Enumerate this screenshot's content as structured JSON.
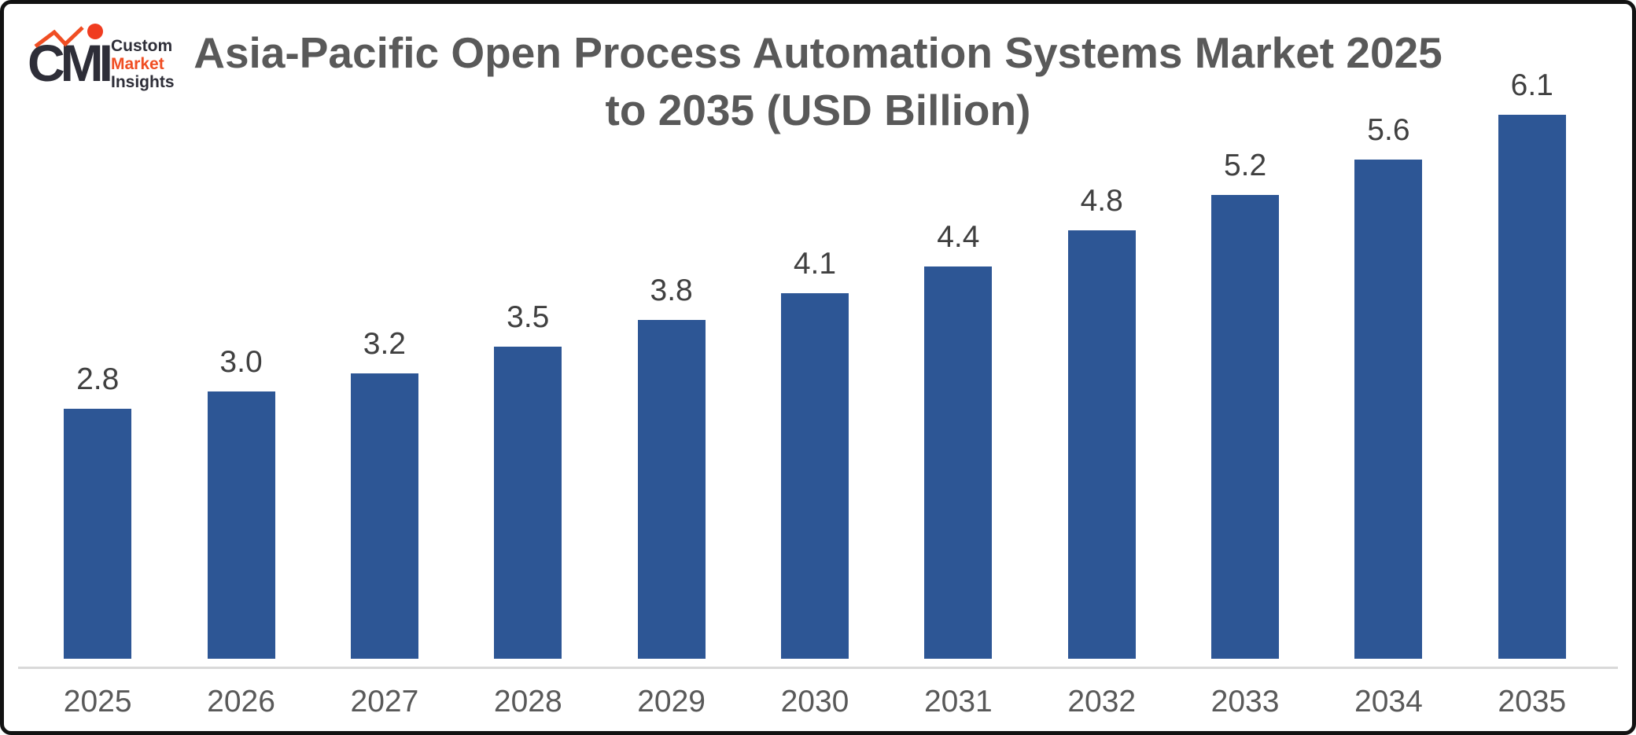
{
  "brand": {
    "mark": "CMI",
    "name_line1": "Custom",
    "name_line2": "Market",
    "name_line3": "Insights",
    "mark_color": "#2e2e38",
    "accent_color": "#f04e23"
  },
  "title": {
    "line1": "Asia-Pacific Open Process Automation Systems Market 2025",
    "line2": "to 2035 (USD Billion)"
  },
  "chart_data": {
    "type": "bar",
    "title": "Asia-Pacific Open Process Automation Systems Market 2025 to 2035 (USD Billion)",
    "unit": "USD Billion",
    "categories": [
      "2025",
      "2026",
      "2027",
      "2028",
      "2029",
      "2030",
      "2031",
      "2032",
      "2033",
      "2034",
      "2035"
    ],
    "values": [
      2.8,
      3.0,
      3.2,
      3.5,
      3.8,
      4.1,
      4.4,
      4.8,
      5.2,
      5.6,
      6.1
    ],
    "value_labels": [
      "2.8",
      "3.0",
      "3.2",
      "3.5",
      "3.8",
      "4.1",
      "4.4",
      "4.8",
      "5.2",
      "5.6",
      "6.1"
    ],
    "xlabel": "",
    "ylabel": "",
    "ylim": [
      0,
      6.5
    ],
    "grid": false,
    "legend": "none",
    "data_labels": "above-bars",
    "bar_color": "#2d5695",
    "value_label_color": "#404040",
    "category_label_color": "#595959",
    "axis_line_color": "#d9d9d9",
    "title_color": "#595959",
    "background_color": "#ffffff",
    "border_color": "#121212"
  }
}
